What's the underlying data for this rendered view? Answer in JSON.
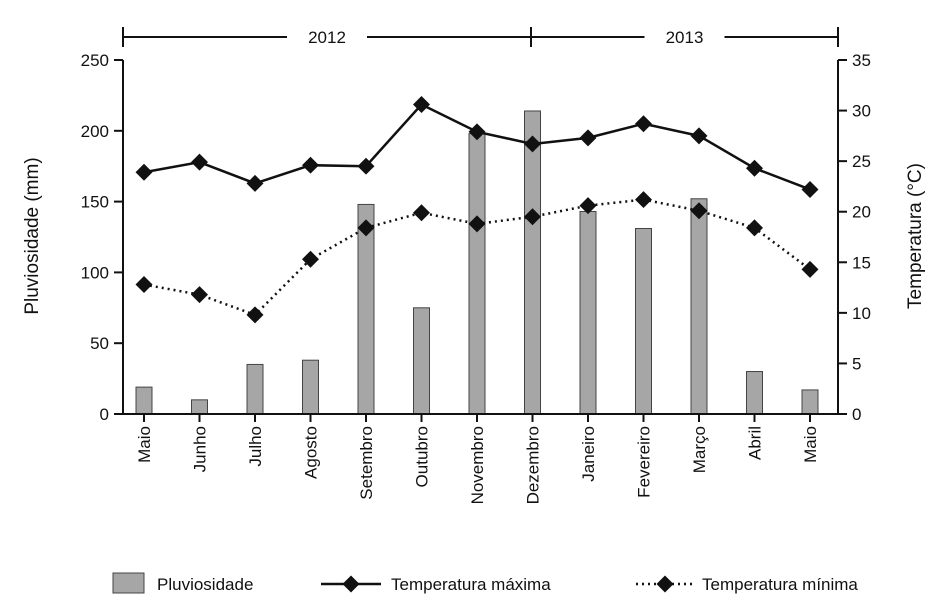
{
  "chart_data": {
    "type": "bar",
    "categories": [
      "Maio",
      "Junho",
      "Julho",
      "Agosto",
      "Setembro",
      "Outubro",
      "Novembro",
      "Dezembro",
      "Janeiro",
      "Fevereiro",
      "Março",
      "Abril",
      "Maio"
    ],
    "years": [
      {
        "label": "2012",
        "from_index": 0,
        "to_index": 7
      },
      {
        "label": "2013",
        "from_index": 8,
        "to_index": 12
      }
    ],
    "series": [
      {
        "name": "Pluviosidade",
        "kind": "bar",
        "axis": "left",
        "color": "#a6a6a6",
        "values": [
          19,
          10,
          35,
          38,
          148,
          75,
          198,
          214,
          143,
          131,
          152,
          30,
          17
        ]
      },
      {
        "name": "Temperatura máxima",
        "kind": "line",
        "axis": "right",
        "style": "solid",
        "color": "#111111",
        "values": [
          23.9,
          24.9,
          22.8,
          24.6,
          24.5,
          30.6,
          27.9,
          26.7,
          27.3,
          28.7,
          27.5,
          24.3,
          22.2
        ]
      },
      {
        "name": "Temperatura mínima",
        "kind": "line",
        "axis": "right",
        "style": "dotted",
        "color": "#111111",
        "values": [
          12.8,
          11.8,
          9.8,
          15.3,
          18.4,
          19.9,
          18.8,
          19.5,
          20.6,
          21.2,
          20.1,
          18.4,
          14.3
        ]
      }
    ],
    "ylabel": "Pluviosidade (mm)",
    "ylim": [
      0,
      250
    ],
    "yticks": [
      0,
      50,
      100,
      150,
      200,
      250
    ],
    "y2label": "Temperatura (°C)",
    "y2lim": [
      0,
      35
    ],
    "y2ticks": [
      0,
      5,
      10,
      15,
      20,
      25,
      30,
      35
    ],
    "grid": false,
    "legend_position": "bottom"
  }
}
